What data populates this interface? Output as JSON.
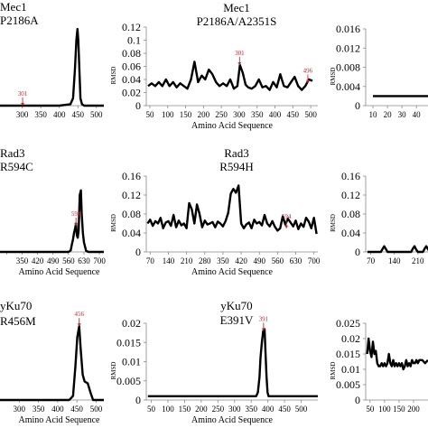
{
  "figure": {
    "xaxis_label": "Amino Acid Sequence",
    "yaxis_label": "RMSD",
    "line_color": "#000000",
    "marker_color": "#c0282f"
  },
  "chart_data": [
    {
      "id": "mec1-p2186a",
      "type": "line",
      "title": "Mec1\nP2186A",
      "xlabel": "Amino Acid Sequence",
      "ylabel": "",
      "xlim": [
        240,
        520
      ],
      "ylim": [
        0,
        0.12
      ],
      "xticks": [
        300,
        350,
        400,
        450,
        500
      ],
      "yticks": [],
      "show_x_label": false,
      "series": [
        {
          "x": [
            240,
            300,
            400,
            430,
            437,
            442,
            446,
            449,
            451,
            454,
            457,
            461,
            467,
            520
          ],
          "y": [
            0,
            0,
            0,
            0.002,
            0.01,
            0.05,
            0.09,
            0.105,
            0.09,
            0.05,
            0.01,
            0.002,
            0,
            0
          ]
        }
      ],
      "annotations": [
        {
          "text": "301",
          "x": 301,
          "y": 0
        }
      ]
    },
    {
      "id": "mec1-p2186a-a2351s",
      "type": "line",
      "title": "Mec1\nP2186A/A2351S",
      "xlabel": "Amino Acid Sequence",
      "ylabel": "RMSD",
      "xlim": [
        40,
        520
      ],
      "ylim": [
        0,
        0.12
      ],
      "xticks": [
        50,
        100,
        150,
        200,
        250,
        300,
        350,
        400,
        450,
        500
      ],
      "yticks": [
        0,
        0.02,
        0.04,
        0.06,
        0.08,
        0.1,
        0.12
      ],
      "show_x_label": true,
      "series": [
        {
          "x": [
            45,
            55,
            65,
            75,
            85,
            95,
            105,
            115,
            125,
            135,
            145,
            155,
            165,
            175,
            185,
            195,
            205,
            215,
            225,
            235,
            245,
            255,
            265,
            275,
            285,
            295,
            302,
            310,
            318,
            325,
            335,
            345,
            355,
            365,
            375,
            385,
            395,
            405,
            415,
            425,
            435,
            445,
            455,
            465,
            475,
            485,
            495,
            505
          ],
          "y": [
            0.03,
            0.034,
            0.03,
            0.036,
            0.03,
            0.04,
            0.03,
            0.036,
            0.028,
            0.034,
            0.03,
            0.026,
            0.04,
            0.067,
            0.036,
            0.046,
            0.04,
            0.055,
            0.048,
            0.036,
            0.03,
            0.034,
            0.03,
            0.04,
            0.026,
            0.03,
            0.062,
            0.05,
            0.032,
            0.028,
            0.026,
            0.03,
            0.04,
            0.028,
            0.03,
            0.024,
            0.036,
            0.028,
            0.048,
            0.03,
            0.028,
            0.036,
            0.044,
            0.03,
            0.024,
            0.03,
            0.04,
            0.038
          ]
        }
      ],
      "annotations": [
        {
          "text": "301",
          "x": 301,
          "y": 0.062
        },
        {
          "text": "496",
          "x": 492,
          "y": 0.035
        }
      ]
    },
    {
      "id": "mec1-right",
      "type": "line",
      "title": "",
      "xlabel": "",
      "ylabel": "RMSD",
      "xlim": [
        5,
        48
      ],
      "ylim": [
        0,
        0.016
      ],
      "xticks": [
        10,
        20,
        30,
        40
      ],
      "xtick_labels": [
        "10",
        "20",
        "30",
        "40"
      ],
      "yticks": [
        0,
        0.004,
        0.008,
        0.012,
        0.016
      ],
      "show_x_label": false,
      "series": [
        {
          "x": [
            10,
            48
          ],
          "y": [
            0.002,
            0.002
          ]
        }
      ],
      "annotations": []
    },
    {
      "id": "rad3-r594c",
      "type": "line",
      "title": "Rad3\nR594C",
      "xlabel": "Amino Acid Sequence",
      "ylabel": "",
      "xlim": [
        250,
        720
      ],
      "ylim": [
        0,
        0.16
      ],
      "xticks": [
        280,
        350,
        420,
        490,
        560,
        630,
        700
      ],
      "xtick_labels": [
        "",
        "350",
        "420",
        "490",
        "560",
        "630",
        "700"
      ],
      "yticks": [],
      "show_x_label": true,
      "series": [
        {
          "x": [
            250,
            560,
            570,
            575,
            580,
            585,
            590,
            594,
            598,
            602,
            606,
            611,
            616,
            620,
            625,
            630,
            640,
            650,
            720
          ],
          "y": [
            0,
            0,
            0.003,
            0.015,
            0.025,
            0.04,
            0.05,
            0.06,
            0.035,
            0.03,
            0.045,
            0.12,
            0.13,
            0.08,
            0.04,
            0.02,
            0.002,
            0,
            0
          ]
        }
      ],
      "annotations": [
        {
          "text": "594",
          "x": 594,
          "y": 0.055
        }
      ]
    },
    {
      "id": "rad3-r594h",
      "type": "line",
      "title": "Rad3\nR594H",
      "xlabel": "Amino Acid Sequence",
      "ylabel": "RMSD",
      "xlim": [
        55,
        715
      ],
      "ylim": [
        0,
        0.16
      ],
      "xticks": [
        70,
        140,
        210,
        280,
        350,
        420,
        490,
        560,
        630,
        700
      ],
      "yticks": [
        0,
        0.04,
        0.08,
        0.12,
        0.16
      ],
      "show_x_label": true,
      "series": [
        {
          "x": [
            60,
            70,
            80,
            90,
            100,
            110,
            120,
            130,
            140,
            150,
            160,
            170,
            180,
            190,
            200,
            210,
            220,
            230,
            240,
            250,
            260,
            270,
            280,
            290,
            300,
            310,
            320,
            330,
            340,
            350,
            360,
            370,
            380,
            390,
            400,
            410,
            420,
            430,
            440,
            450,
            460,
            470,
            480,
            490,
            500,
            510,
            520,
            530,
            540,
            550,
            560,
            570,
            580,
            590,
            600,
            610,
            620,
            630,
            640,
            650,
            660,
            670,
            680,
            690,
            700,
            710
          ],
          "y": [
            0.06,
            0.068,
            0.055,
            0.065,
            0.06,
            0.072,
            0.05,
            0.062,
            0.065,
            0.055,
            0.078,
            0.052,
            0.066,
            0.056,
            0.06,
            0.05,
            0.103,
            0.09,
            0.06,
            0.1,
            0.08,
            0.052,
            0.066,
            0.058,
            0.06,
            0.063,
            0.052,
            0.064,
            0.06,
            0.054,
            0.065,
            0.082,
            0.123,
            0.133,
            0.125,
            0.14,
            0.06,
            0.05,
            0.058,
            0.062,
            0.05,
            0.068,
            0.06,
            0.063,
            0.056,
            0.078,
            0.06,
            0.054,
            0.065,
            0.053,
            0.045,
            0.05,
            0.075,
            0.058,
            0.07,
            0.062,
            0.054,
            0.066,
            0.048,
            0.06,
            0.053,
            0.072,
            0.064,
            0.05,
            0.072,
            0.038
          ]
        }
      ],
      "annotations": [
        {
          "text": "594",
          "x": 594,
          "y": 0.05
        }
      ]
    },
    {
      "id": "rad3-right",
      "type": "line",
      "title": "",
      "xlabel": "",
      "ylabel": "RMSD",
      "xlim": [
        55,
        240
      ],
      "ylim": [
        0,
        0.16
      ],
      "xticks": [
        70,
        140,
        210
      ],
      "yticks": [
        0,
        0.04,
        0.08,
        0.12,
        0.16
      ],
      "show_x_label": false,
      "series": [
        {
          "x": [
            60,
            100,
            105,
            110,
            115,
            120,
            190,
            195,
            200,
            205,
            210,
            225,
            230,
            235,
            240,
            245
          ],
          "y": [
            0,
            0,
            0.006,
            0.012,
            0.006,
            0,
            0,
            0.007,
            0.012,
            0.005,
            0,
            0,
            0.007,
            0.012,
            0.006,
            0
          ]
        }
      ],
      "annotations": []
    },
    {
      "id": "yku70-r456m",
      "type": "line",
      "title": "yKu70\nR456M",
      "xlabel": "Amino Acid Sequence",
      "ylabel": "",
      "xlim": [
        250,
        520
      ],
      "ylim": [
        0,
        0.1
      ],
      "xticks": [
        300,
        350,
        400,
        450,
        500
      ],
      "yticks": [],
      "show_x_label": true,
      "series": [
        {
          "x": [
            250,
            430,
            440,
            446,
            451,
            456,
            460,
            465,
            470,
            478,
            486,
            492,
            520
          ],
          "y": [
            0,
            0,
            0.005,
            0.04,
            0.075,
            0.088,
            0.06,
            0.03,
            0.022,
            0.02,
            0.008,
            0,
            0
          ]
        }
      ],
      "annotations": [
        {
          "text": "456",
          "x": 456,
          "y": 0.088
        }
      ]
    },
    {
      "id": "yku70-e391v",
      "type": "line",
      "title": "yKu70\nE391V",
      "xlabel": "Amino Acid Sequence",
      "ylabel": "RMSD",
      "xlim": [
        35,
        550
      ],
      "ylim": [
        0,
        0.02
      ],
      "xticks": [
        50,
        100,
        150,
        200,
        250,
        300,
        350,
        400,
        450,
        500
      ],
      "yticks": [
        0,
        0.005,
        0.01,
        0.015,
        0.02
      ],
      "show_x_label": true,
      "series": [
        {
          "x": [
            40,
            365,
            370,
            375,
            378,
            382,
            386,
            390,
            393,
            396,
            399,
            402,
            550
          ],
          "y": [
            0.001,
            0.001,
            0.002,
            0.006,
            0.011,
            0.015,
            0.018,
            0.0185,
            0.012,
            0.006,
            0.002,
            0.001,
            0.001
          ]
        }
      ],
      "annotations": [
        {
          "text": "391",
          "x": 387,
          "y": 0.018
        }
      ]
    },
    {
      "id": "yku70-right",
      "type": "line",
      "title": "",
      "xlabel": "",
      "ylabel": "RMSD",
      "xlim": [
        35,
        250
      ],
      "ylim": [
        0,
        0.025
      ],
      "xticks": [
        50,
        100,
        150,
        200
      ],
      "xtick_labels": [
        "50",
        "100",
        "150",
        "200"
      ],
      "yticks": [
        0,
        0.005,
        0.01,
        0.015,
        0.02,
        0.025
      ],
      "show_x_label": false,
      "series": [
        {
          "x": [
            40,
            45,
            50,
            55,
            60,
            65,
            70,
            75,
            80,
            85,
            90,
            95,
            100,
            105,
            110,
            115,
            120,
            125,
            130,
            135,
            140,
            145,
            150,
            155,
            160,
            165,
            170,
            175,
            180,
            185,
            190,
            195,
            200,
            205,
            210,
            215,
            220,
            230,
            240,
            250
          ],
          "y": [
            0.015,
            0.02,
            0.016,
            0.014,
            0.019,
            0.015,
            0.016,
            0.012,
            0.011,
            0.011,
            0.012,
            0.011,
            0.012,
            0.011,
            0.012,
            0.015,
            0.012,
            0.011,
            0.013,
            0.011,
            0.012,
            0.011,
            0.012,
            0.011,
            0.012,
            0.01,
            0.011,
            0.013,
            0.011,
            0.012,
            0.011,
            0.013,
            0.012,
            0.012,
            0.013,
            0.012,
            0.013,
            0.013,
            0.012,
            0.013
          ]
        }
      ],
      "annotations": []
    }
  ]
}
